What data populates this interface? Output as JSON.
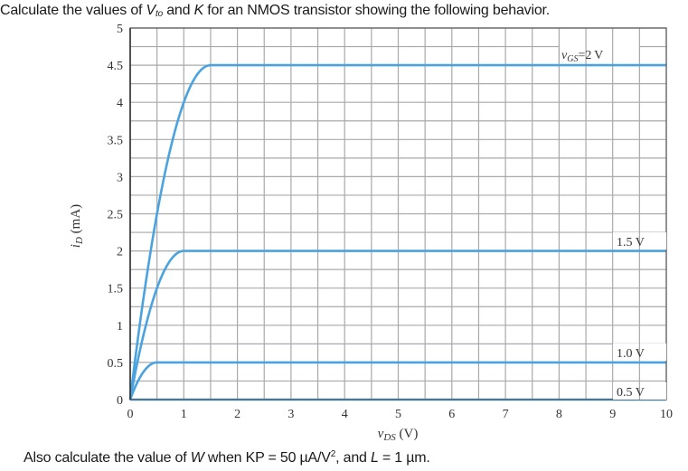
{
  "question": {
    "top": {
      "pre": "Calculate the values of ",
      "v": "V",
      "v_sub": "to",
      "mid": " and ",
      "k": "K",
      "post": " for an NMOS transistor showing the following behavior."
    },
    "bottom": {
      "pre": "Also calculate the value of ",
      "w": "W",
      "mid": " when KP = 50 µA/V",
      "sup": "2",
      "mid2": ", and ",
      "l": "L",
      "post": " = 1 µm."
    }
  },
  "colors": {
    "curve": "#4aa3df",
    "grid": "#a9a9a9",
    "axis": "#333333",
    "background": "#ffffff"
  },
  "chart_data": {
    "type": "line",
    "title": "",
    "xlabel": "vDS (V)",
    "ylabel": "iD (mA)",
    "xlim": [
      0,
      10
    ],
    "ylim": [
      0,
      5
    ],
    "x_ticks": [
      "0",
      "1",
      "2",
      "3",
      "4",
      "5",
      "6",
      "7",
      "8",
      "9",
      "10"
    ],
    "y_ticks": [
      "0",
      "0.5",
      "1",
      "1.5",
      "2",
      "2.5",
      "3",
      "3.5",
      "4",
      "4.5",
      "5"
    ],
    "grid": {
      "on": true,
      "x_step": 0.5,
      "y_step": 0.25
    },
    "legend": "inline labels at right",
    "series": [
      {
        "name": "vGS = 2 V",
        "label": "vGS = 2 V",
        "vov": 1.5,
        "i_sat": 4.5,
        "x": [
          0,
          0.25,
          0.5,
          0.75,
          1.0,
          1.25,
          1.5,
          10
        ],
        "values": [
          0,
          1.375,
          2.5,
          3.375,
          4.0,
          4.375,
          4.5,
          4.5
        ]
      },
      {
        "name": "vGS = 1.5 V",
        "label": "1.5 V",
        "vov": 1.0,
        "i_sat": 2.0,
        "x": [
          0,
          0.25,
          0.5,
          0.75,
          1.0,
          10
        ],
        "values": [
          0,
          0.875,
          1.5,
          1.875,
          2.0,
          2.0
        ]
      },
      {
        "name": "vGS = 1.0 V",
        "label": "1.0 V",
        "vov": 0.5,
        "i_sat": 0.5,
        "x": [
          0,
          0.125,
          0.25,
          0.375,
          0.5,
          10
        ],
        "values": [
          0,
          0.219,
          0.375,
          0.469,
          0.5,
          0.5
        ]
      },
      {
        "name": "vGS = 0.5 V",
        "label": "0.5 V",
        "vov": 0.0,
        "i_sat": 0.0,
        "x": [
          0,
          10
        ],
        "values": [
          0,
          0
        ]
      }
    ],
    "annotations": [
      "vGS = 2 V",
      "1.5 V",
      "1.0 V",
      "0.5 V"
    ]
  }
}
